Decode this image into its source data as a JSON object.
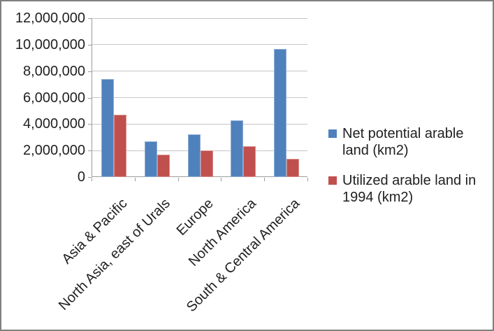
{
  "chart_data": {
    "type": "bar",
    "title": "",
    "xlabel": "",
    "ylabel": "",
    "categories": [
      "Asia & Pacific",
      "North Asia, east of Urals",
      "Europe",
      "North America",
      "South & Central America"
    ],
    "series": [
      {
        "name": "Net potential arable land (km2)",
        "color": "#4F81BD",
        "values": [
          7400000,
          2700000,
          3200000,
          4300000,
          9700000
        ]
      },
      {
        "name": "Utilized arable land in 1994 (km2)",
        "color": "#C0504D",
        "values": [
          4700000,
          1700000,
          2000000,
          2300000,
          1400000
        ]
      }
    ],
    "ylim": [
      0,
      12000000
    ],
    "ytick_step": 2000000,
    "ytick_labels": [
      "0",
      "2,000,000",
      "4,000,000",
      "6,000,000",
      "8,000,000",
      "10,000,000",
      "12,000,000"
    ],
    "grid": true,
    "legend_position": "right"
  },
  "colors": {
    "background": "#FFFFFF",
    "frame_border": "#808080",
    "gridline": "#C6C6C6",
    "axis": "#9C9C9C",
    "text": "#1F1F1F",
    "series1": "#4F81BD",
    "series2": "#C0504D"
  }
}
